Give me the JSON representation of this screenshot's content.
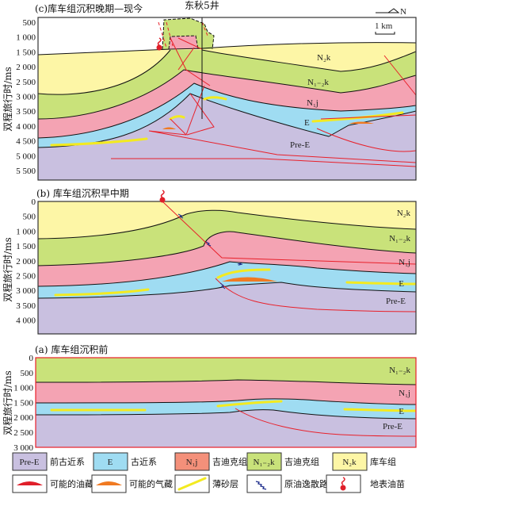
{
  "colors": {
    "pre_e": "#c9c0e0",
    "e": "#9fdcf2",
    "n1j": "#f4a3b3",
    "n12k": "#c9e27a",
    "n2k": "#fdf6a6",
    "n1j_legend": "#f4907a",
    "fault": "#e8202a",
    "sand": "#f3ea20",
    "oil": "#e01f2a",
    "gas": "#f07a22",
    "migration": "#1a2a8a"
  },
  "y_axis_label": "双程旅行时/ms",
  "well_label": "东秋5井",
  "north_label": "N",
  "scale_label": "1 km",
  "panels": {
    "c": {
      "title": "(c)库车组沉积晚期—现今",
      "ticks": [
        "500",
        "1 000",
        "1 500",
        "2 000",
        "2 500",
        "3 000",
        "3 500",
        "4 000",
        "4 500",
        "5 000",
        "5 500"
      ],
      "formations": {
        "n2k": "N₂k",
        "n12k": "N₁₋₂k",
        "n1j": "N₁j",
        "e": "E",
        "pre_e": "Pre-E"
      }
    },
    "b": {
      "title": "(b) 库车组沉积早中期",
      "ticks": [
        "0",
        "500",
        "1 000",
        "1 500",
        "2 000",
        "2 500",
        "3 000",
        "3 500",
        "4 000"
      ],
      "formations": {
        "n2k": "N₂k",
        "n12k": "N₁₋₂k",
        "n1j": "N₁j",
        "e": "E",
        "pre_e": "Pre-E"
      }
    },
    "a": {
      "title": "(a) 库车组沉积前",
      "ticks": [
        "0",
        "500",
        "1 000",
        "1 500",
        "2 000",
        "2 500",
        "3 000"
      ],
      "formations": {
        "n12k": "N₁₋₂k",
        "n1j": "N₁j",
        "e": "E",
        "pre_e": "Pre-E"
      }
    }
  },
  "legend": {
    "row1": [
      {
        "symbol": "Pre-E",
        "label": "前古近系"
      },
      {
        "symbol": "E",
        "label": "古近系"
      },
      {
        "symbol": "N₁j",
        "label": "吉迪克组"
      },
      {
        "symbol": "N₁₋₂k",
        "label": "吉迪克组"
      },
      {
        "symbol": "N₂k",
        "label": "库车组"
      }
    ],
    "row2": [
      {
        "icon": "oil-reservoir",
        "label": "可能的油藏"
      },
      {
        "icon": "gas-reservoir",
        "label": "可能的气藏"
      },
      {
        "icon": "thin-sand",
        "label": "薄砂层"
      },
      {
        "icon": "migration-path",
        "label": "原油逸散路径"
      },
      {
        "icon": "oil-seep",
        "label": "地表油苗"
      }
    ]
  }
}
